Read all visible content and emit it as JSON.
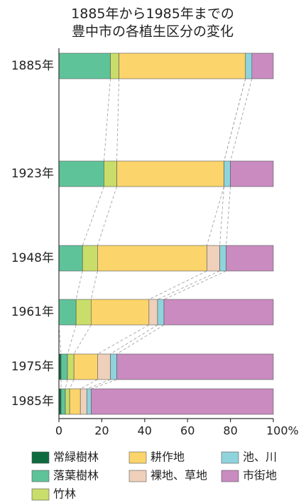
{
  "chart_data": {
    "type": "stacked-bar-horizontal",
    "title": [
      "1885年から1985年までの",
      "豊中市の各植生区分の変化"
    ],
    "categories": [
      "1885年",
      "1923年",
      "1948年",
      "1961年",
      "1975年",
      "1985年"
    ],
    "series": [
      {
        "name": "常緑樹林",
        "color": "#0d6b3f",
        "values": [
          0,
          0,
          0,
          0,
          1,
          1
        ]
      },
      {
        "name": "落葉樹林",
        "color": "#5fc39a",
        "values": [
          24,
          21,
          11,
          8,
          3,
          2
        ]
      },
      {
        "name": "竹林",
        "color": "#c9dd6a",
        "values": [
          4,
          6,
          7,
          7,
          3,
          2
        ]
      },
      {
        "name": "耕作地",
        "color": "#fbd46b",
        "values": [
          59,
          50,
          51,
          27,
          11,
          5
        ]
      },
      {
        "name": "裸地、草地",
        "color": "#efd0ba",
        "values": [
          0,
          0,
          6,
          4,
          6,
          3
        ]
      },
      {
        "name": "池、川",
        "color": "#8fd4dc",
        "values": [
          3,
          3,
          3,
          3,
          3,
          2
        ]
      },
      {
        "name": "市街地",
        "color": "#c98bc0",
        "values": [
          10,
          20,
          22,
          51,
          73,
          85
        ]
      }
    ],
    "xlim": [
      0,
      100
    ],
    "xticks": [
      0,
      20,
      40,
      60,
      80,
      {
        "value": 100,
        "label": "100%"
      }
    ]
  }
}
